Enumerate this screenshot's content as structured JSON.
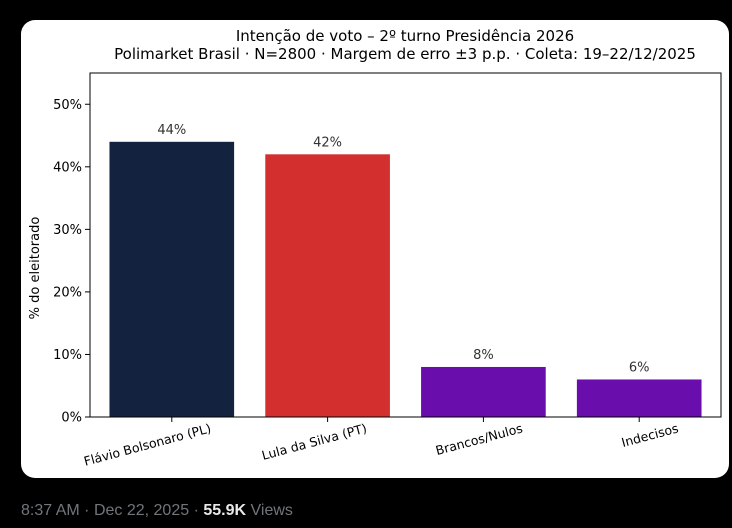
{
  "chart_data": {
    "type": "bar",
    "title": "Intenção de voto – 2º turno Presidência 2026",
    "subtitle": "Polimarket Brasil · N=2800 · Margem de erro ±3 p.p. · Coleta: 19–22/12/2025",
    "ylabel": "% do eleitorado",
    "xlabel": "",
    "ylim": [
      0,
      55
    ],
    "yticks": [
      0,
      10,
      20,
      30,
      40,
      50
    ],
    "ytick_labels": [
      "0%",
      "10%",
      "20%",
      "30%",
      "40%",
      "50%"
    ],
    "categories": [
      "Flávio Bolsonaro (PL)",
      "Lula da Silva (PT)",
      "Brancos/Nulos",
      "Indecisos"
    ],
    "values": [
      44,
      42,
      8,
      6
    ],
    "value_labels": [
      "44%",
      "42%",
      "8%",
      "6%"
    ],
    "colors": [
      "#13233f",
      "#d32f2f",
      "#6a0dad",
      "#6a0dad"
    ],
    "grid": false
  },
  "post": {
    "time": "8:37 AM",
    "date": "Dec 22, 2025",
    "separator": "·",
    "views_count": "55.9K",
    "views_label": "Views"
  }
}
